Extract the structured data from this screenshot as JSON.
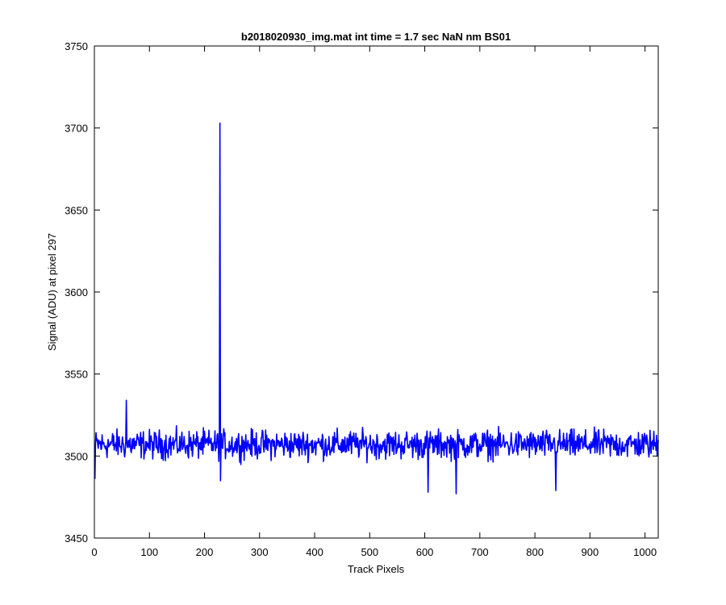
{
  "chart_data": {
    "type": "line",
    "title": "b2018020930_img.mat int time = 1.7 sec  NaN nm BS01",
    "xlabel": "Track Pixels",
    "ylabel": "Signal (ADU) at pixel 297",
    "xlim": [
      0,
      1024
    ],
    "ylim": [
      3450,
      3750
    ],
    "xticks": [
      0,
      100,
      200,
      300,
      400,
      500,
      600,
      700,
      800,
      900,
      1000
    ],
    "yticks": [
      3450,
      3500,
      3550,
      3600,
      3650,
      3700,
      3750
    ],
    "grid": false,
    "legend": "none",
    "series": [
      {
        "color": "#0000ff",
        "baseline": 3507,
        "noise_amplitude": 8,
        "points_count": 1024,
        "features": [
          {
            "x": 1,
            "y": 3486
          },
          {
            "x": 58,
            "y": 3534
          },
          {
            "x": 228,
            "y": 3703
          },
          {
            "x": 229,
            "y": 3485
          },
          {
            "x": 606,
            "y": 3478
          },
          {
            "x": 657,
            "y": 3477
          },
          {
            "x": 838,
            "y": 3479
          }
        ]
      }
    ]
  }
}
